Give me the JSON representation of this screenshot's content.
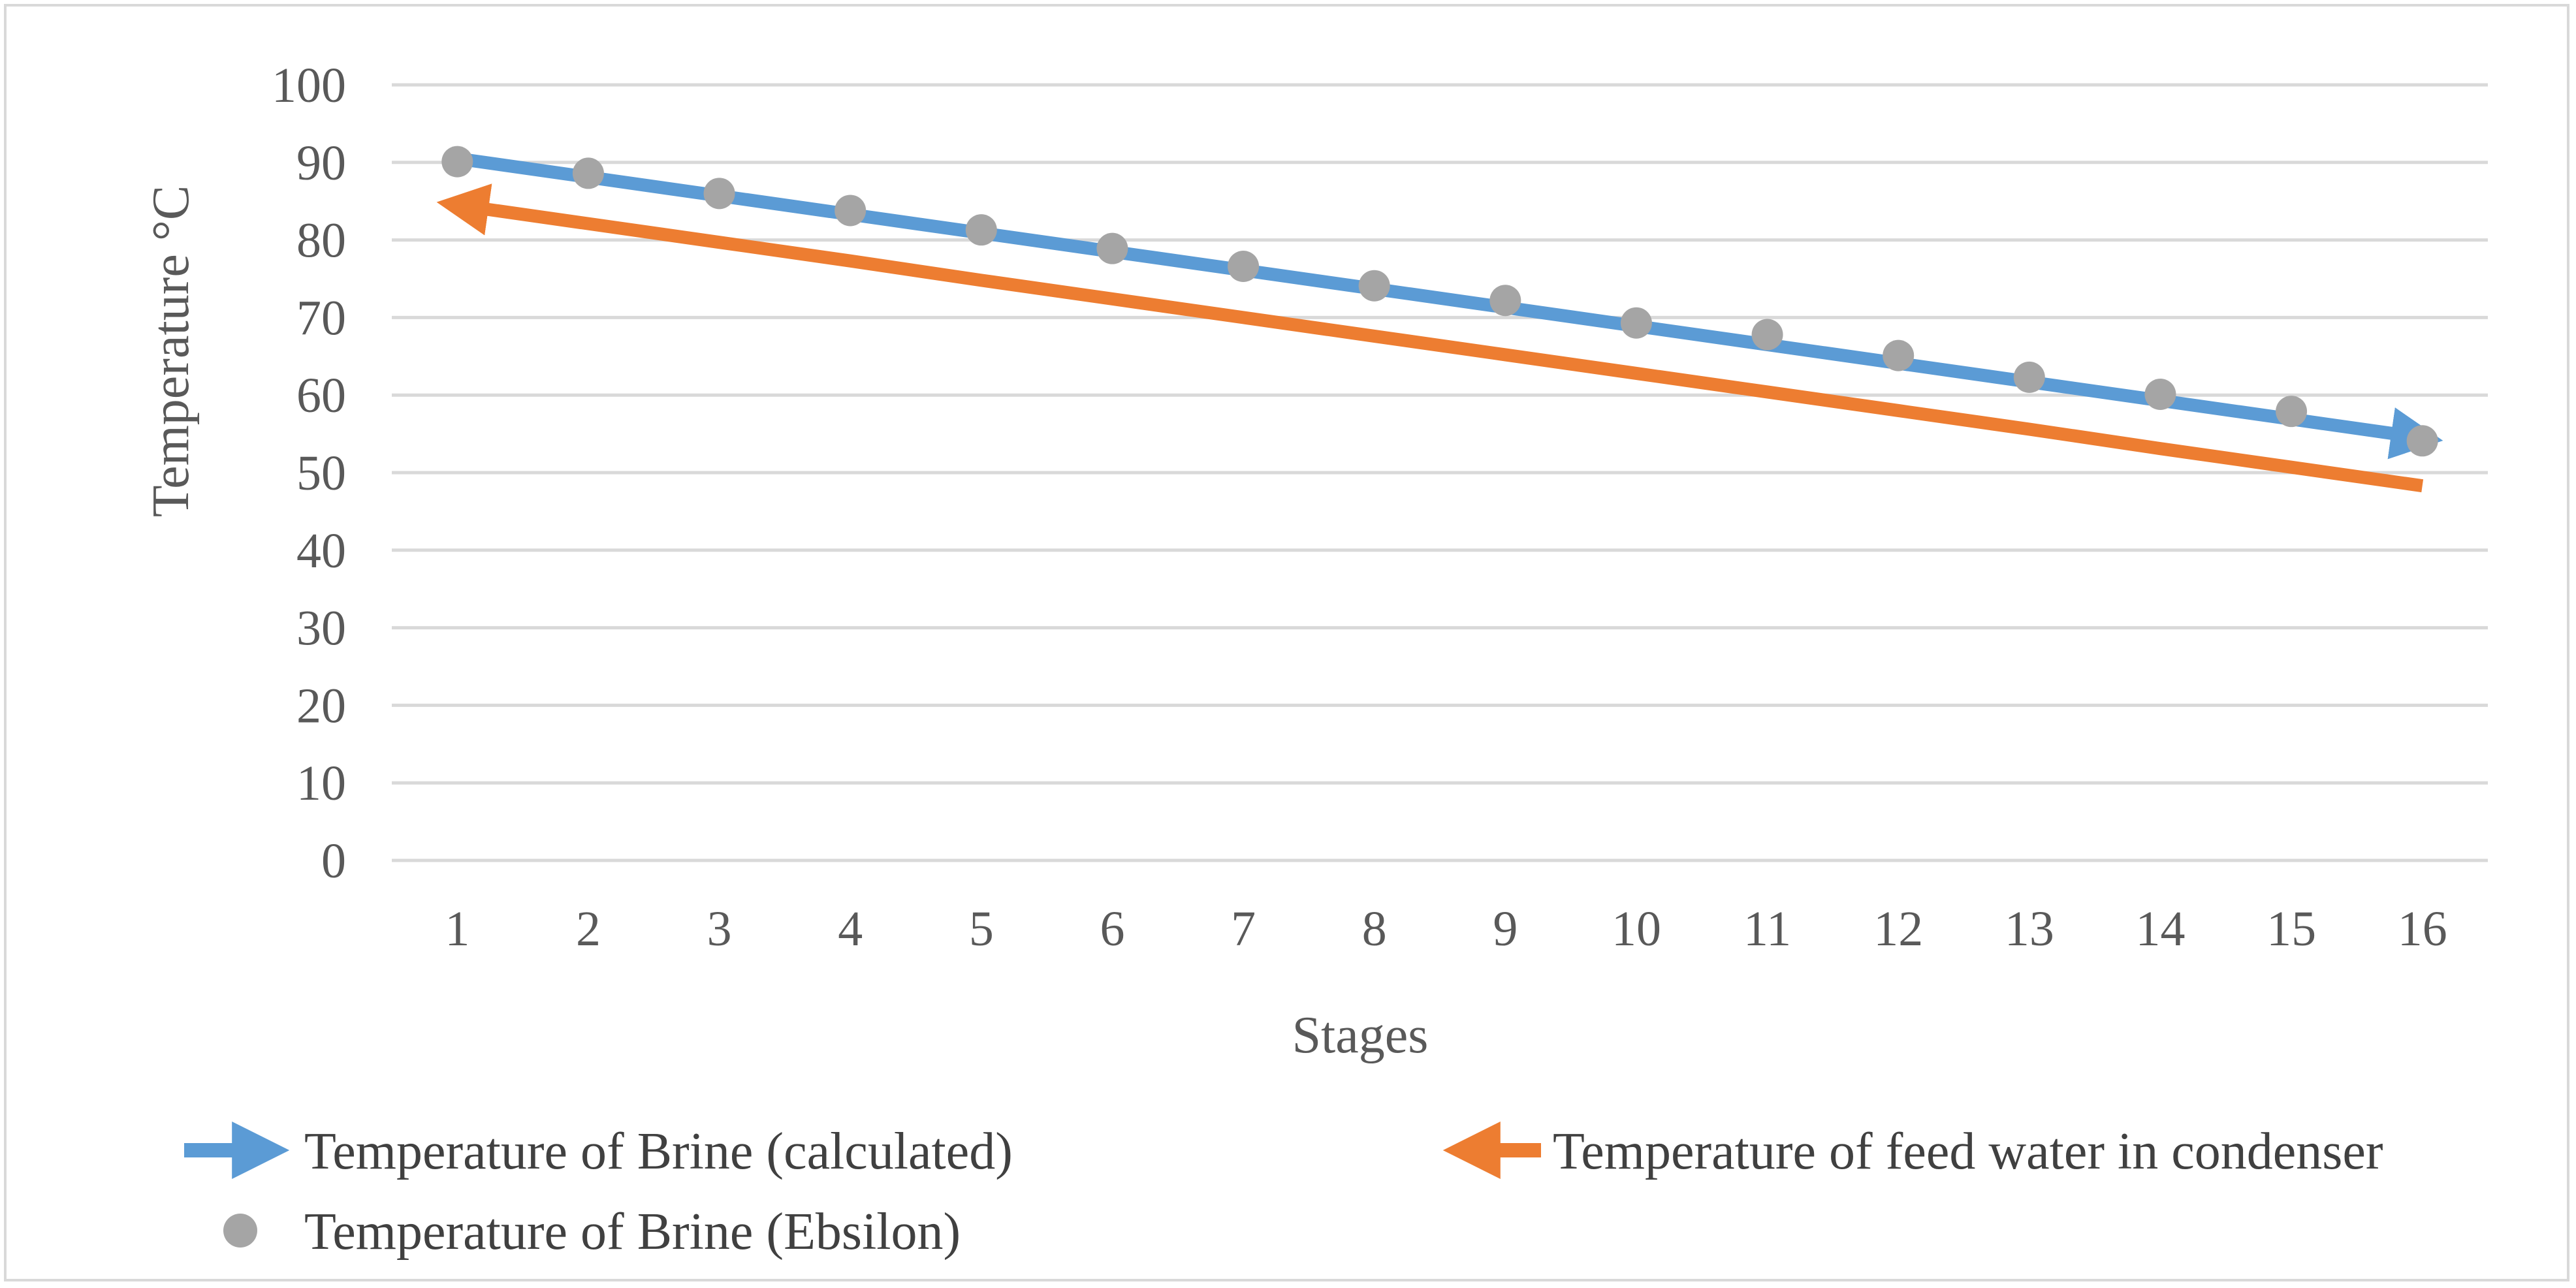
{
  "chart_data": {
    "type": "line",
    "title": "",
    "xlabel": "Stages",
    "ylabel": "Temperature °C",
    "ylim": [
      0,
      100
    ],
    "yticks": [
      0,
      10,
      20,
      30,
      40,
      50,
      60,
      70,
      80,
      90,
      100
    ],
    "categories": [
      "1",
      "2",
      "3",
      "4",
      "5",
      "6",
      "7",
      "8",
      "9",
      "10",
      "11",
      "12",
      "13",
      "14",
      "15",
      "16"
    ],
    "grid": true,
    "legend_position": "bottom",
    "series": [
      {
        "name": "Temperature of Brine (calculated)",
        "kind": "line-arrow",
        "direction": "forward",
        "color": "#5b9bd5",
        "values": [
          90.5,
          88.1,
          85.7,
          83.3,
          80.9,
          78.5,
          76.1,
          73.7,
          71.3,
          68.9,
          66.5,
          64.1,
          61.7,
          59.3,
          56.9,
          54.5
        ]
      },
      {
        "name": "Temperature of feed water in condenser",
        "kind": "line-arrow",
        "direction": "backward",
        "color": "#ed7d31",
        "values": [
          84.5,
          82.1,
          79.7,
          77.3,
          74.8,
          72.4,
          70.0,
          67.6,
          65.2,
          62.8,
          60.4,
          58.0,
          55.6,
          53.1,
          50.7,
          48.3
        ]
      },
      {
        "name": "Temperature of Brine (Ebsilon)",
        "kind": "scatter",
        "color": "#a5a5a5",
        "values": [
          90.1,
          88.6,
          86.0,
          83.8,
          81.3,
          78.9,
          76.6,
          74.1,
          72.2,
          69.3,
          67.8,
          65.1,
          62.3,
          60.1,
          57.9,
          54.1
        ]
      }
    ]
  }
}
